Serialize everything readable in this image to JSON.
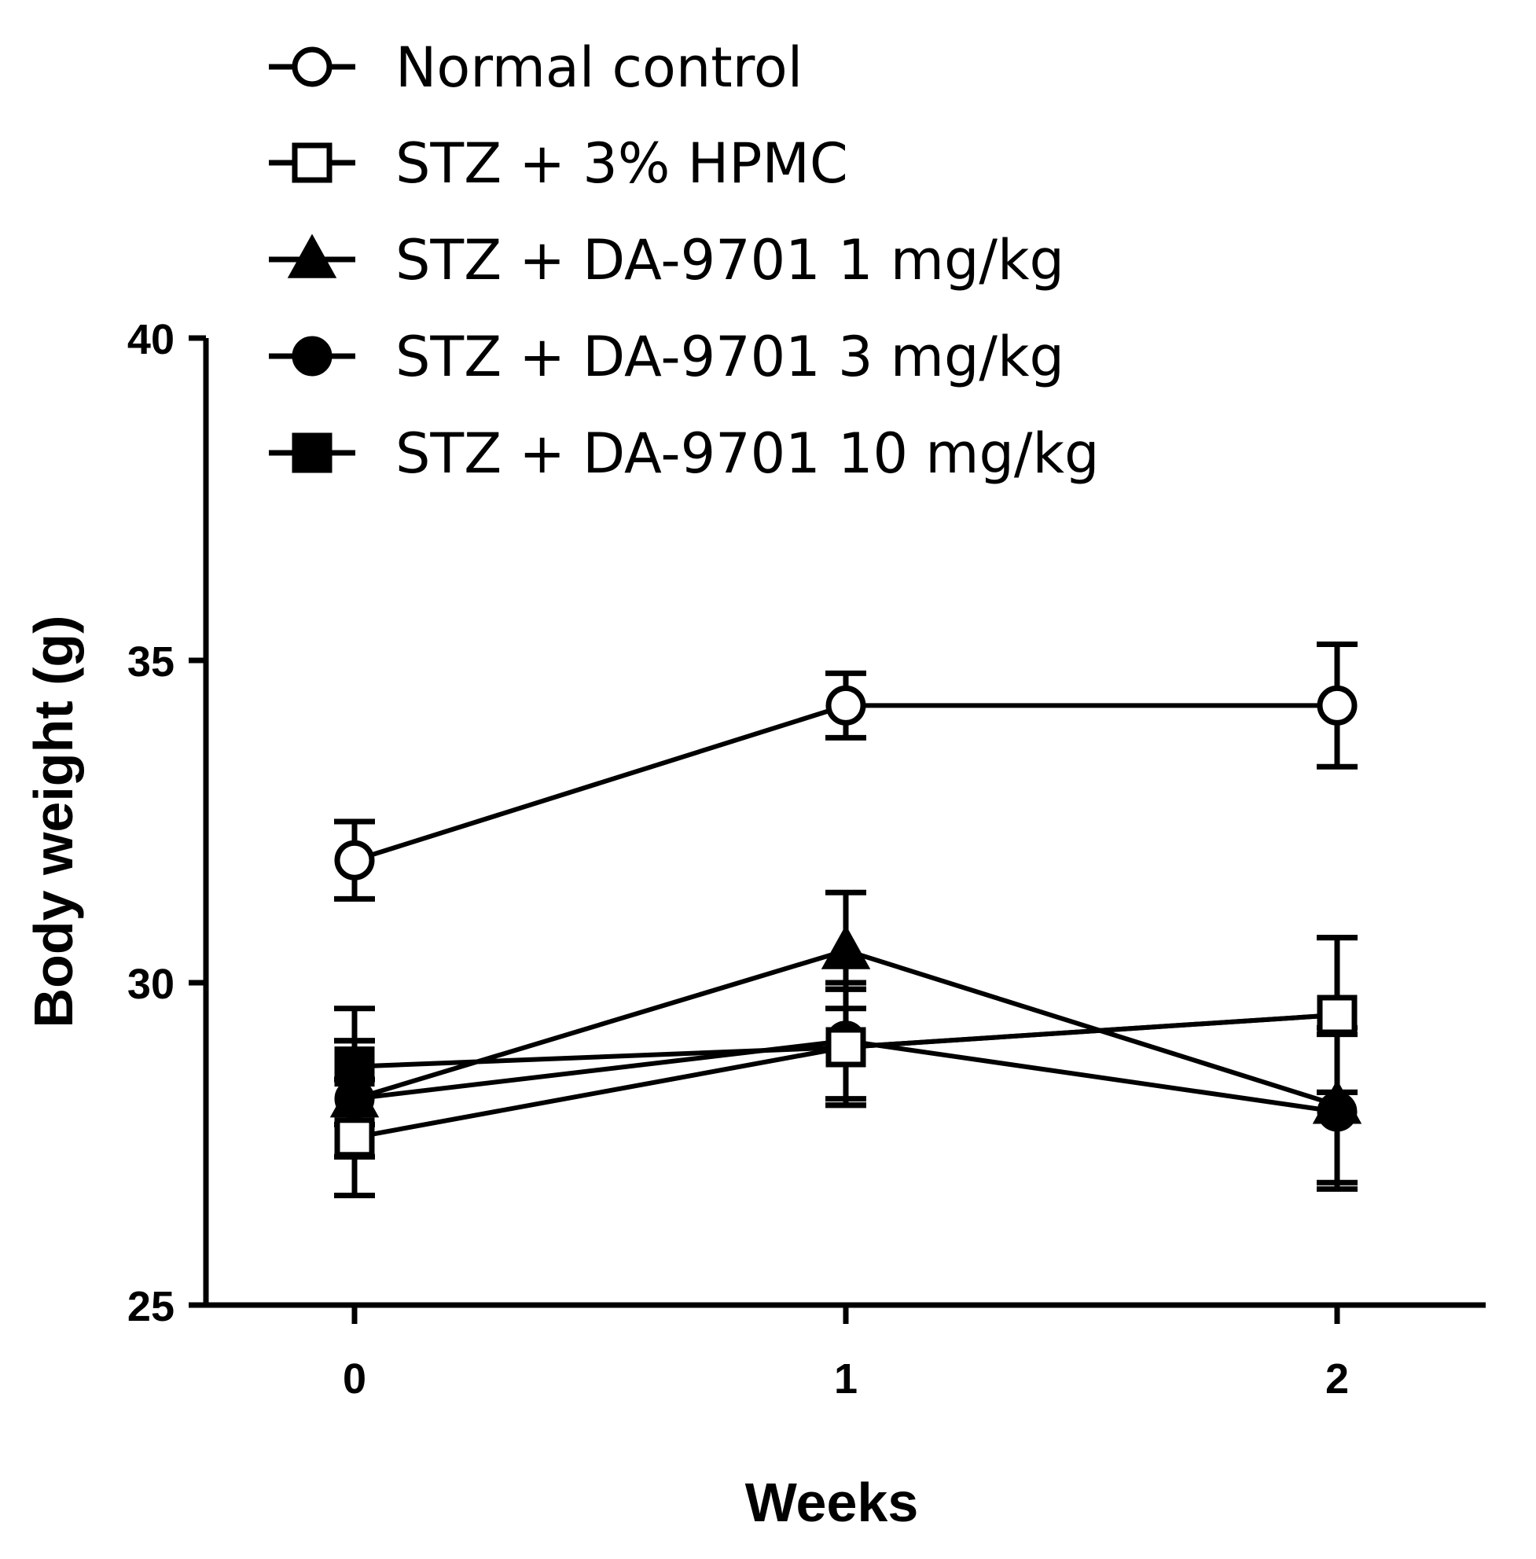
{
  "chart_data": {
    "type": "line",
    "title": "",
    "xlabel": "Weeks",
    "ylabel": "Body weight (g)",
    "x": [
      0,
      1,
      2
    ],
    "x_tick_labels": [
      "0",
      "1",
      "2"
    ],
    "ylim": [
      25,
      40
    ],
    "y_ticks": [
      25,
      30,
      35,
      40
    ],
    "y_tick_labels": [
      "25",
      "30",
      "35",
      "40"
    ],
    "legend_position": "top-left",
    "series": [
      {
        "name": "Normal control",
        "marker": "open-circle",
        "values": [
          31.9,
          34.3,
          34.3
        ],
        "errors": [
          0.6,
          0.5,
          0.95
        ]
      },
      {
        "name": "STZ + 3% HPMC",
        "marker": "open-square",
        "values": [
          27.6,
          29.0,
          29.5
        ],
        "errors": [
          0.9,
          0.9,
          1.2
        ]
      },
      {
        "name": "STZ + DA-9701 1 mg/kg",
        "marker": "filled-triangle",
        "values": [
          28.2,
          30.5,
          28.1
        ],
        "errors": [
          0.9,
          0.9,
          1.2
        ]
      },
      {
        "name": "STZ + DA-9701 3 mg/kg",
        "marker": "filled-circle",
        "values": [
          28.2,
          29.1,
          28.0
        ],
        "errors": [
          0.9,
          0.9,
          1.2
        ]
      },
      {
        "name": "STZ + DA-9701 10 mg/kg",
        "marker": "filled-square",
        "values": [
          28.7,
          29.0,
          29.5
        ],
        "errors": [
          0.9,
          0.9,
          1.2
        ]
      }
    ]
  }
}
